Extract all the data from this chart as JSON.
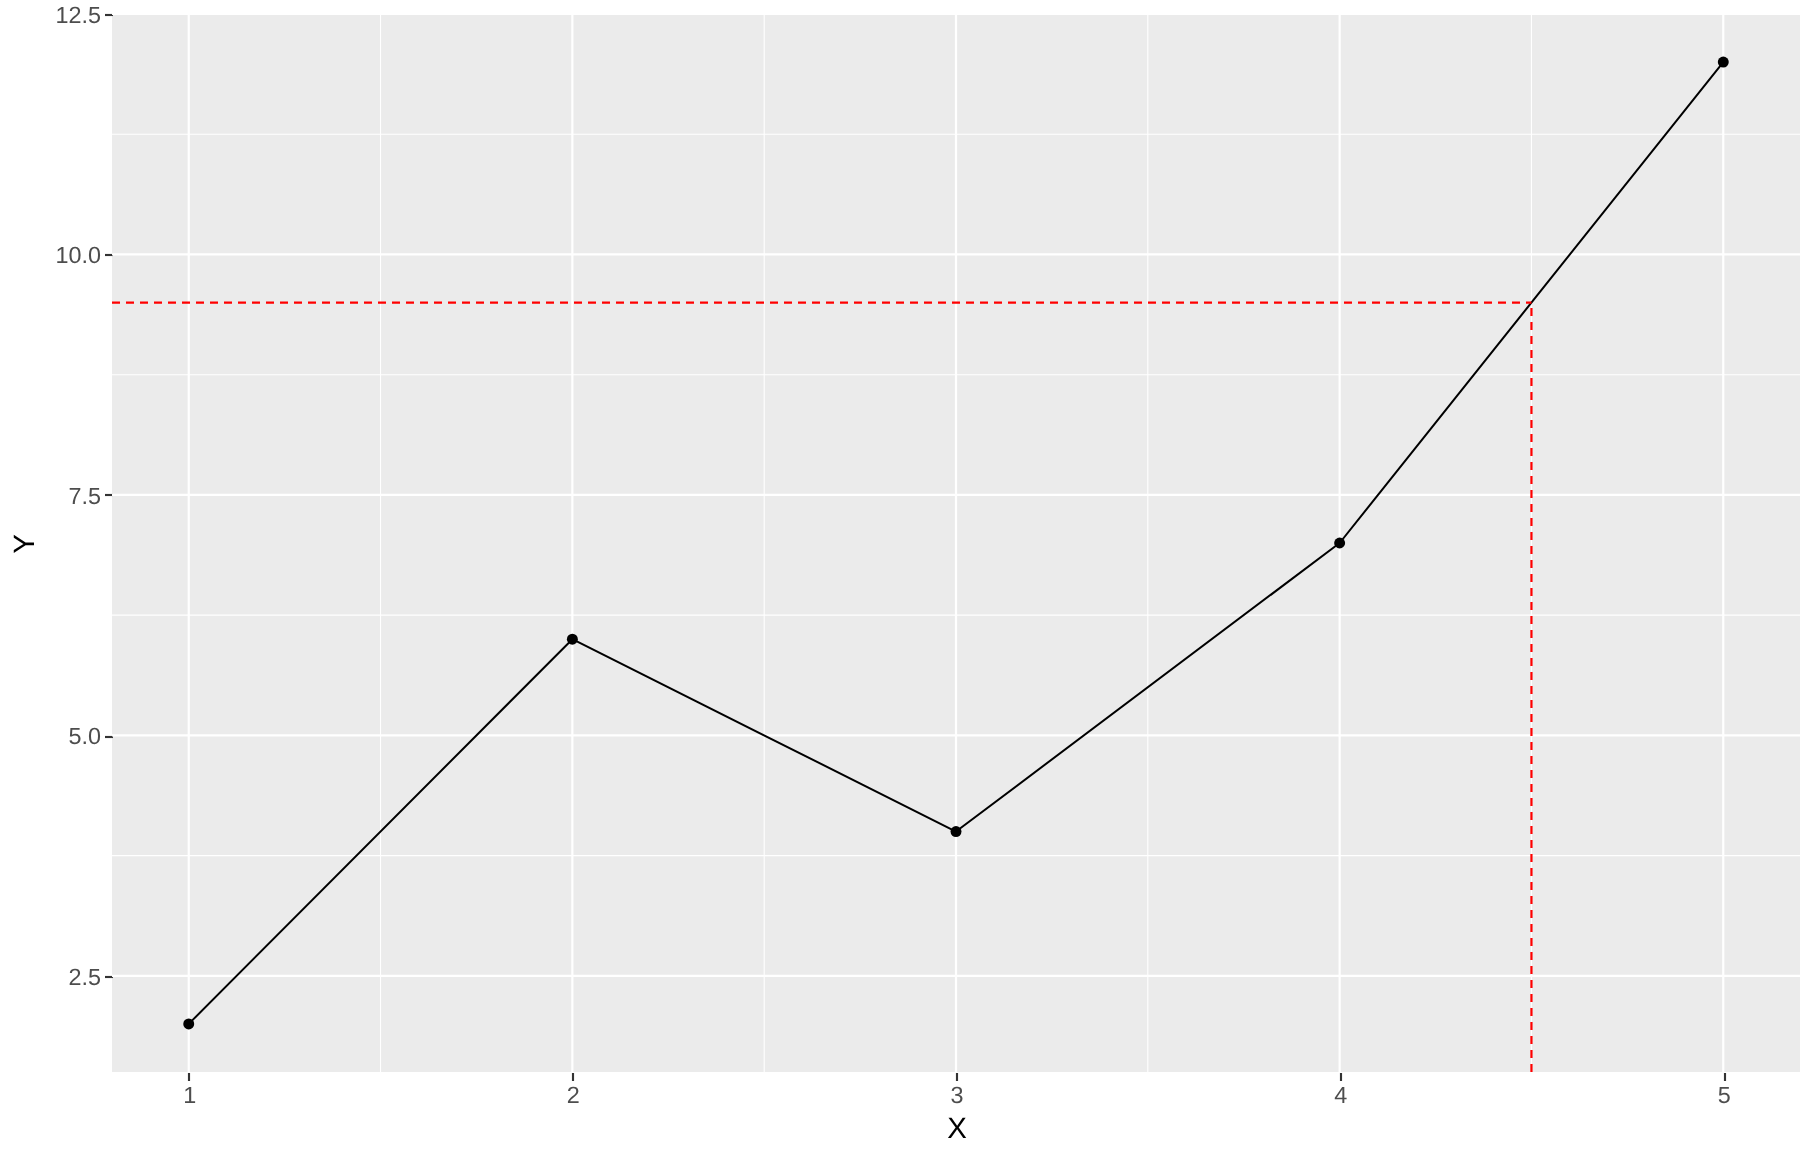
{
  "chart_data": {
    "type": "line",
    "xlabel": "X",
    "ylabel": "Y",
    "x": [
      1,
      2,
      3,
      4,
      5
    ],
    "series": [
      {
        "color": "#000000",
        "values": [
          2,
          6,
          4,
          7,
          12
        ]
      }
    ],
    "xlim": [
      0.8,
      5.2
    ],
    "ylim": [
      1.5,
      12.5
    ],
    "xticks": [
      1,
      {
        "value": 1.5,
        "label": null
      },
      2,
      {
        "value": 2.5,
        "label": null
      },
      3,
      {
        "value": 3.5,
        "label": null
      },
      4,
      {
        "value": 4.5,
        "label": null
      },
      5
    ],
    "yticks": [
      2.5,
      {
        "value": 3.75,
        "label": null
      },
      {
        "value": 5,
        "label": "5.0"
      },
      {
        "value": 6.25,
        "label": null
      },
      7.5,
      {
        "value": 8.75,
        "label": null
      },
      {
        "value": 10,
        "label": "10.0"
      },
      {
        "value": 11.25,
        "label": null
      },
      12.5
    ],
    "grid": true,
    "marker": "circle",
    "line_style": "solid",
    "ref_lines": [
      {
        "axis": "y",
        "value": 9.5,
        "color": "#ff0000",
        "line_style": "dashed"
      },
      {
        "axis": "x",
        "value": 4.5,
        "color": "#ff0000",
        "line_style": "dashed"
      }
    ]
  }
}
